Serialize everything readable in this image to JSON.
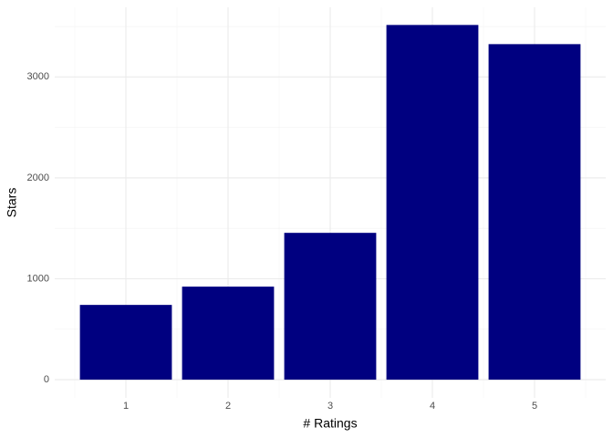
{
  "chart_data": {
    "type": "bar",
    "x_label": "# Ratings",
    "y_label": "Stars",
    "categories": [
      "1",
      "2",
      "3",
      "4",
      "5"
    ],
    "values": [
      741,
      922,
      1455,
      3515,
      3325
    ],
    "color": "#000080",
    "ylim": [
      -180,
      3690
    ],
    "yticks": [
      0,
      1000,
      2000,
      3000
    ],
    "yminorticks": [
      500,
      1500,
      2500,
      3500
    ],
    "grid": true
  }
}
